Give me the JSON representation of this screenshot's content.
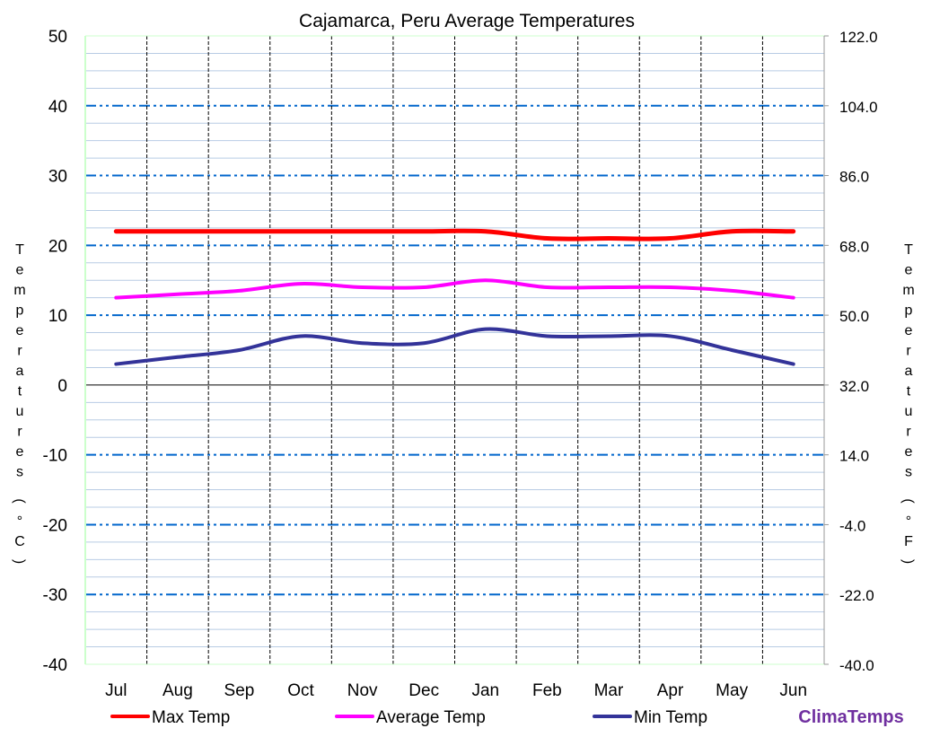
{
  "chart_data": {
    "type": "line",
    "title": "Cajamarca, Peru Average Temperatures",
    "categories": [
      "Jul",
      "Aug",
      "Sep",
      "Oct",
      "Nov",
      "Dec",
      "Jan",
      "Feb",
      "Mar",
      "Apr",
      "May",
      "Jun"
    ],
    "series": [
      {
        "name": "Max Temp",
        "color": "#ff0000",
        "values": [
          22,
          22,
          22,
          22,
          22,
          22,
          22,
          21,
          21,
          21,
          22,
          22
        ]
      },
      {
        "name": "Average Temp",
        "color": "#ff00ff",
        "values": [
          12.5,
          13,
          13.5,
          14.5,
          14,
          14,
          15,
          14,
          14,
          14,
          13.5,
          12.5
        ]
      },
      {
        "name": "Min Temp",
        "color": "#333399",
        "values": [
          3,
          4,
          5,
          7,
          6,
          6,
          8,
          7,
          7,
          7,
          5,
          3
        ]
      }
    ],
    "ylabel": "Temperatures (°C)",
    "y2label": "Temperatures (°F)",
    "ylim": [
      -40,
      50
    ],
    "yticks": [
      "50",
      "40",
      "30",
      "20",
      "10",
      "0",
      "-10",
      "-20",
      "-30",
      "-40"
    ],
    "y2ticks": [
      "122.0",
      "104.0",
      "86.0",
      "68.0",
      "50.0",
      "32.0",
      "14.0",
      "-4.0",
      "-22.0",
      "-40.0"
    ],
    "grid": true,
    "legend_position": "bottom"
  },
  "watermark": "ClimaTemps"
}
